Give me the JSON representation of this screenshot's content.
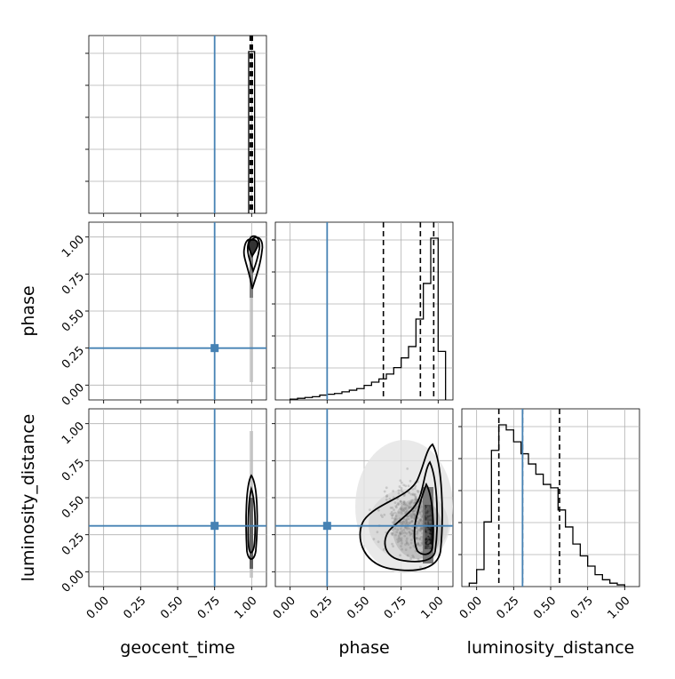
{
  "chart_data": {
    "type": "corner",
    "parameters": [
      "geocent_time",
      "phase",
      "luminosity_distance"
    ],
    "axis_labels": {
      "x": [
        "geocent_time",
        "phase",
        "luminosity_distance"
      ],
      "y": [
        "phase",
        "luminosity_distance"
      ]
    },
    "tick_labels": [
      "0.00",
      "0.25",
      "0.50",
      "0.75",
      "1.00"
    ],
    "tick_values": [
      0,
      0.25,
      0.5,
      0.75,
      1.0
    ],
    "ranges": {
      "geocent_time": [
        -0.1,
        1.1
      ],
      "phase": [
        -0.1,
        1.1
      ],
      "luminosity_distance": [
        -0.1,
        1.1
      ]
    },
    "truths": {
      "geocent_time": 0.75,
      "phase": 0.25,
      "luminosity_distance": 0.31
    },
    "truth_color": "#4682b4",
    "hist_color": "#000000",
    "grid": true,
    "quantiles": {
      "geocent_time": [
        0.99,
        1.0,
        1.005
      ],
      "phase": [
        0.63,
        0.88,
        0.97
      ],
      "luminosity_distance": [
        0.15,
        0.31,
        0.56
      ]
    },
    "histograms": {
      "geocent_time": {
        "bin_edges": [
          0.98,
          1.0,
          1.02
        ],
        "counts": [
          1.0,
          1.0
        ]
      },
      "phase": {
        "bin_edges": [
          0.0,
          0.05,
          0.1,
          0.15,
          0.2,
          0.25,
          0.3,
          0.35,
          0.4,
          0.45,
          0.5,
          0.55,
          0.6,
          0.65,
          0.7,
          0.75,
          0.8,
          0.85,
          0.9,
          0.95,
          1.0,
          1.05
        ],
        "counts": [
          0.005,
          0.01,
          0.015,
          0.02,
          0.03,
          0.035,
          0.04,
          0.05,
          0.06,
          0.07,
          0.09,
          0.11,
          0.13,
          0.16,
          0.2,
          0.26,
          0.33,
          0.5,
          0.72,
          1.0,
          0.3
        ]
      },
      "luminosity_distance": {
        "bin_edges": [
          -0.05,
          0.0,
          0.05,
          0.1,
          0.15,
          0.2,
          0.25,
          0.3,
          0.35,
          0.4,
          0.45,
          0.5,
          0.55,
          0.6,
          0.65,
          0.7,
          0.75,
          0.8,
          0.85,
          0.9,
          0.95,
          1.0
        ],
        "counts": [
          0.02,
          0.1,
          0.38,
          0.8,
          0.95,
          0.92,
          0.85,
          0.78,
          0.72,
          0.66,
          0.6,
          0.58,
          0.45,
          0.35,
          0.25,
          0.18,
          0.12,
          0.07,
          0.04,
          0.02,
          0.01
        ]
      }
    },
    "density_peaks": {
      "geocent_time_vs_phase": {
        "x": 1.0,
        "y": 0.93
      },
      "geocent_time_vs_luminosity_distance": {
        "x": 1.0,
        "y": 0.25
      },
      "phase_vs_luminosity_distance": {
        "x": 0.93,
        "y": 0.25
      }
    }
  }
}
